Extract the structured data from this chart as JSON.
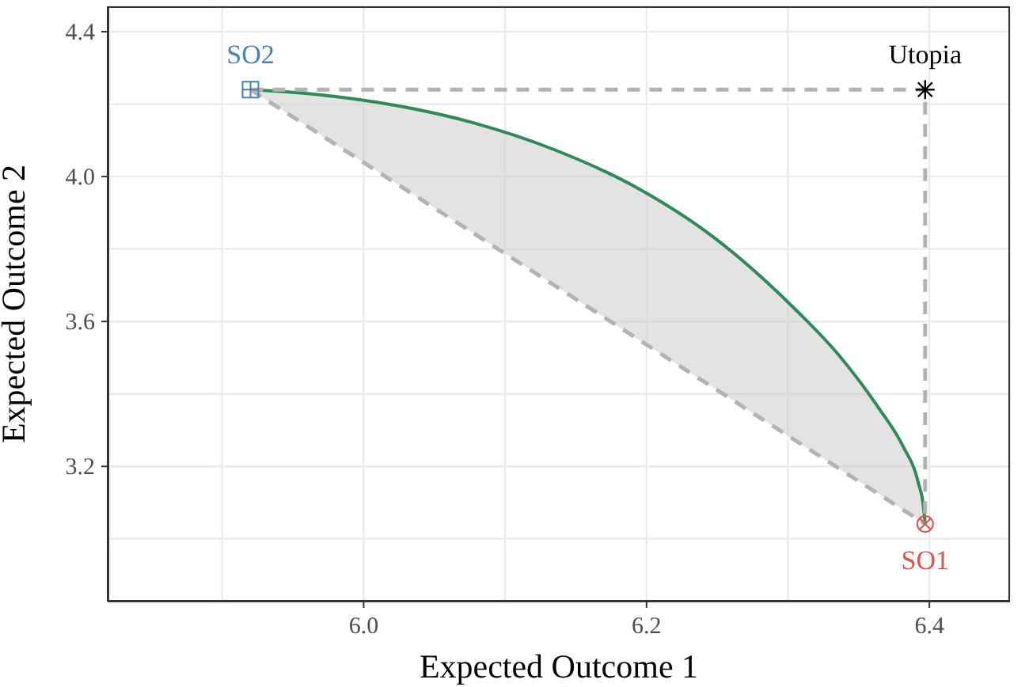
{
  "chart_data": {
    "type": "line",
    "xlabel": "Expected Outcome 1",
    "ylabel": "Expected Outcome 2",
    "xlim": [
      5.819,
      6.457
    ],
    "ylim": [
      2.827,
      4.47
    ],
    "xticks": [
      {
        "value": 5.9,
        "label": null
      },
      {
        "value": 6.0,
        "label": "6.0"
      },
      {
        "value": 6.1,
        "label": null
      },
      {
        "value": 6.2,
        "label": "6.2"
      },
      {
        "value": 6.3,
        "label": null
      },
      {
        "value": 6.4,
        "label": "6.4"
      }
    ],
    "yticks": [
      {
        "value": 3.0,
        "label": null
      },
      {
        "value": 3.2,
        "label": "3.2"
      },
      {
        "value": 3.4,
        "label": null
      },
      {
        "value": 3.6,
        "label": "3.6"
      },
      {
        "value": 3.8,
        "label": null
      },
      {
        "value": 4.0,
        "label": "4.0"
      },
      {
        "value": 4.2,
        "label": null
      },
      {
        "value": 4.4,
        "label": "4.4"
      }
    ],
    "grid": true,
    "legend": false,
    "series": [
      {
        "color": "#2e8b57",
        "line_style": "solid",
        "x": [
          5.92,
          5.966,
          6.022,
          6.078,
          6.135,
          6.191,
          6.247,
          6.303,
          6.336,
          6.364,
          6.381,
          6.392,
          6.396,
          6.397
        ],
        "values": [
          4.24,
          4.227,
          4.197,
          4.148,
          4.074,
          3.974,
          3.834,
          3.642,
          3.507,
          3.362,
          3.258,
          3.157,
          3.083,
          3.041
        ],
        "lower": [
          4.24,
          4.124,
          3.984,
          3.843,
          3.7,
          3.559,
          3.418,
          3.277,
          3.194,
          3.124,
          3.081,
          3.053,
          3.041,
          3.041
        ],
        "upper": [
          4.24,
          4.227,
          4.197,
          4.148,
          4.074,
          3.974,
          3.834,
          3.642,
          3.507,
          3.362,
          3.258,
          3.157,
          3.083,
          3.041
        ]
      },
      {
        "color": "#b3b3b3",
        "line_style": "dashed",
        "x": [
          5.92,
          6.397
        ],
        "values": [
          4.24,
          3.041
        ]
      },
      {
        "color": "#b3b3b3",
        "line_style": "dashed",
        "x": [
          5.92,
          6.397,
          6.397
        ],
        "values": [
          4.24,
          4.24,
          3.041
        ]
      },
      {
        "type": "scatter",
        "name": "SO2",
        "color": "#4682b4",
        "marker": "square",
        "x": [
          5.92
        ],
        "values": [
          4.24
        ]
      },
      {
        "type": "scatter",
        "name": "SO1",
        "color": "#d9534f",
        "marker": "circle",
        "x": [
          6.397
        ],
        "values": [
          3.041
        ]
      },
      {
        "type": "scatter",
        "name": "Utopia",
        "color": "#000000",
        "marker": "cross",
        "x": [
          6.397
        ],
        "values": [
          4.24
        ]
      }
    ]
  }
}
